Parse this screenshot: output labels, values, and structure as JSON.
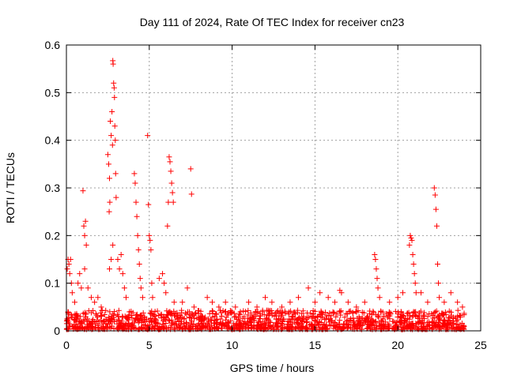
{
  "chart_data": {
    "type": "scatter",
    "title": "Day 111 of 2024, Rate Of TEC Index for receiver cn23",
    "xlabel": "GPS time / hours",
    "ylabel": "ROTI / TECUs",
    "xlim": [
      0,
      25
    ],
    "ylim": [
      0,
      0.6
    ],
    "xticks": [
      0,
      5,
      10,
      15,
      20,
      25
    ],
    "yticks": [
      0,
      0.1,
      0.2,
      0.3,
      0.4,
      0.5,
      0.6
    ],
    "xtick_labels": [
      "0",
      "5",
      "10",
      "15",
      "20",
      "25"
    ],
    "ytick_labels": [
      "0",
      "0.1",
      "0.2",
      "0.3",
      "0.4",
      "0.5",
      "0.6"
    ],
    "grid": true,
    "marker": "plus",
    "color": "#ff0000",
    "series": [
      {
        "name": "ROTI",
        "points": [
          [
            0.05,
            0.13
          ],
          [
            0.1,
            0.15
          ],
          [
            0.15,
            0.14
          ],
          [
            0.2,
            0.12
          ],
          [
            0.25,
            0.15
          ],
          [
            0.3,
            0.1
          ],
          [
            0.35,
            0.08
          ],
          [
            0.5,
            0.06
          ],
          [
            0.7,
            0.1
          ],
          [
            0.8,
            0.12
          ],
          [
            0.9,
            0.09
          ],
          [
            1.0,
            0.294
          ],
          [
            1.05,
            0.22
          ],
          [
            1.1,
            0.2
          ],
          [
            1.15,
            0.23
          ],
          [
            1.2,
            0.18
          ],
          [
            1.1,
            0.13
          ],
          [
            1.3,
            0.09
          ],
          [
            1.5,
            0.07
          ],
          [
            1.7,
            0.06
          ],
          [
            1.9,
            0.07
          ],
          [
            2.1,
            0.05
          ],
          [
            2.5,
            0.37
          ],
          [
            2.55,
            0.35
          ],
          [
            2.6,
            0.32
          ],
          [
            2.62,
            0.27
          ],
          [
            2.58,
            0.25
          ],
          [
            2.65,
            0.44
          ],
          [
            2.7,
            0.41
          ],
          [
            2.75,
            0.46
          ],
          [
            2.78,
            0.39
          ],
          [
            2.8,
            0.567
          ],
          [
            2.82,
            0.56
          ],
          [
            2.85,
            0.52
          ],
          [
            2.88,
            0.51
          ],
          [
            2.9,
            0.49
          ],
          [
            2.92,
            0.43
          ],
          [
            2.95,
            0.4
          ],
          [
            2.97,
            0.33
          ],
          [
            3.0,
            0.28
          ],
          [
            2.6,
            0.13
          ],
          [
            2.7,
            0.15
          ],
          [
            2.8,
            0.18
          ],
          [
            3.1,
            0.15
          ],
          [
            3.2,
            0.13
          ],
          [
            3.3,
            0.16
          ],
          [
            3.4,
            0.12
          ],
          [
            3.5,
            0.09
          ],
          [
            3.6,
            0.07
          ],
          [
            4.1,
            0.33
          ],
          [
            4.15,
            0.31
          ],
          [
            4.2,
            0.27
          ],
          [
            4.25,
            0.24
          ],
          [
            4.3,
            0.2
          ],
          [
            4.35,
            0.17
          ],
          [
            4.4,
            0.14
          ],
          [
            4.45,
            0.11
          ],
          [
            4.5,
            0.09
          ],
          [
            4.6,
            0.07
          ],
          [
            4.9,
            0.41
          ],
          [
            4.95,
            0.265
          ],
          [
            5.0,
            0.2
          ],
          [
            5.05,
            0.19
          ],
          [
            5.1,
            0.17
          ],
          [
            5.15,
            0.1
          ],
          [
            5.2,
            0.07
          ],
          [
            5.6,
            0.11
          ],
          [
            5.8,
            0.12
          ],
          [
            5.9,
            0.1
          ],
          [
            6.0,
            0.08
          ],
          [
            6.1,
            0.22
          ],
          [
            6.15,
            0.27
          ],
          [
            6.2,
            0.365
          ],
          [
            6.25,
            0.355
          ],
          [
            6.3,
            0.335
          ],
          [
            6.35,
            0.31
          ],
          [
            6.4,
            0.29
          ],
          [
            6.45,
            0.27
          ],
          [
            6.5,
            0.06
          ],
          [
            7.0,
            0.06
          ],
          [
            7.3,
            0.09
          ],
          [
            7.5,
            0.34
          ],
          [
            7.55,
            0.287
          ],
          [
            7.7,
            0.05
          ],
          [
            8.5,
            0.07
          ],
          [
            8.8,
            0.06
          ],
          [
            9.2,
            0.05
          ],
          [
            9.6,
            0.06
          ],
          [
            10.2,
            0.05
          ],
          [
            10.5,
            0.04
          ],
          [
            11.0,
            0.06
          ],
          [
            11.5,
            0.05
          ],
          [
            12.0,
            0.07
          ],
          [
            12.4,
            0.06
          ],
          [
            13.0,
            0.05
          ],
          [
            13.5,
            0.06
          ],
          [
            14.0,
            0.07
          ],
          [
            14.6,
            0.09
          ],
          [
            15.0,
            0.06
          ],
          [
            15.3,
            0.08
          ],
          [
            15.8,
            0.07
          ],
          [
            16.2,
            0.06
          ],
          [
            16.5,
            0.085
          ],
          [
            16.6,
            0.08
          ],
          [
            17.0,
            0.06
          ],
          [
            17.5,
            0.05
          ],
          [
            18.0,
            0.06
          ],
          [
            18.6,
            0.16
          ],
          [
            18.65,
            0.15
          ],
          [
            18.7,
            0.13
          ],
          [
            18.75,
            0.11
          ],
          [
            18.8,
            0.09
          ],
          [
            18.9,
            0.07
          ],
          [
            19.5,
            0.06
          ],
          [
            20.0,
            0.07
          ],
          [
            20.3,
            0.08
          ],
          [
            20.7,
            0.18
          ],
          [
            20.75,
            0.2
          ],
          [
            20.8,
            0.195
          ],
          [
            20.85,
            0.19
          ],
          [
            20.9,
            0.16
          ],
          [
            20.95,
            0.14
          ],
          [
            21.0,
            0.12
          ],
          [
            21.05,
            0.1
          ],
          [
            21.1,
            0.08
          ],
          [
            21.4,
            0.08
          ],
          [
            21.8,
            0.06
          ],
          [
            22.2,
            0.3
          ],
          [
            22.25,
            0.285
          ],
          [
            22.3,
            0.255
          ],
          [
            22.35,
            0.22
          ],
          [
            22.4,
            0.14
          ],
          [
            22.45,
            0.1
          ],
          [
            22.5,
            0.07
          ],
          [
            22.8,
            0.06
          ],
          [
            23.2,
            0.08
          ],
          [
            23.6,
            0.06
          ],
          [
            23.9,
            0.05
          ]
        ],
        "baseline": {
          "x_range": [
            0,
            24
          ],
          "typical_max": 0.04,
          "count": 1400
        }
      }
    ]
  }
}
